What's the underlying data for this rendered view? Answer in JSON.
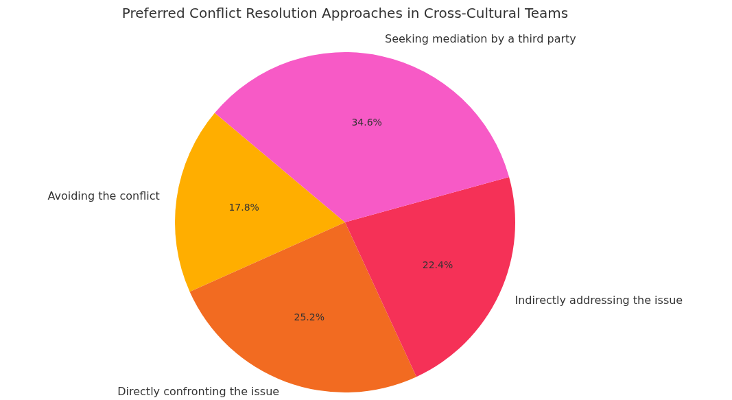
{
  "chart_data": {
    "type": "pie",
    "title": "Preferred Conflict Resolution Approaches in Cross-Cultural Teams",
    "categories": [
      "Avoiding the conflict",
      "Directly confronting the issue",
      "Indirectly addressing the issue",
      "Seeking mediation by a third party"
    ],
    "values": [
      17.8,
      25.2,
      22.4,
      34.6
    ],
    "value_labels": [
      "17.8%",
      "25.2%",
      "22.4%",
      "34.6%"
    ],
    "colors": [
      "#ffae00",
      "#f26b21",
      "#f53157",
      "#f75ac6"
    ]
  }
}
